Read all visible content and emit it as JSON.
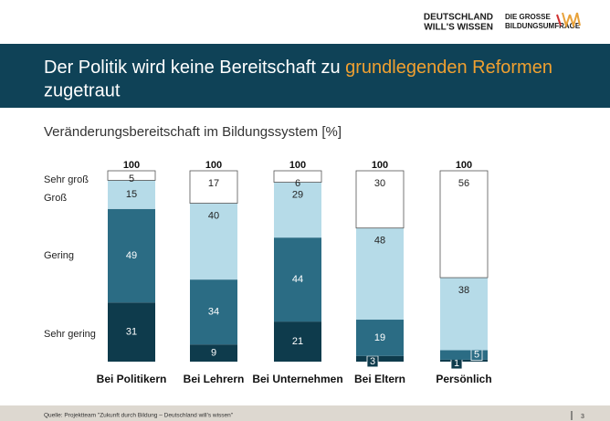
{
  "logos": {
    "left": [
      "DEUTSCHLAND",
      "WILL'S WISSEN"
    ],
    "right": [
      "DIE GROSSE",
      "BILDUNGSUMFRAGE"
    ]
  },
  "banner": {
    "title_start": "Der Politik wird keine Bereitschaft zu ",
    "title_highlight": "grundlegenden Reformen",
    "title_end": "zugetraut"
  },
  "footer": {
    "source": "Quelle: Projektteam \"Zukunft durch Bildung – Deutschland will's wissen\"",
    "page": "3"
  },
  "chart_data": {
    "type": "stacked_bar",
    "title": "Veränderungsbereitschaft im Bildungssystem [%]",
    "categories": [
      "Bei Politikern",
      "Bei Lehrern",
      "Bei Unternehmen",
      "Bei Eltern",
      "Persönlich"
    ],
    "series": [
      {
        "name": "Sehr gering",
        "color": "#0e3b4c",
        "values": [
          31,
          9,
          21,
          3,
          1
        ]
      },
      {
        "name": "Gering",
        "color": "#2b6c84",
        "values": [
          49,
          34,
          44,
          19,
          5
        ]
      },
      {
        "name": "Groß",
        "color": "#b6dbe8",
        "values": [
          15,
          40,
          29,
          48,
          38
        ]
      },
      {
        "name": "Sehr groß",
        "color": "#ffffff",
        "values": [
          5,
          17,
          6,
          30,
          56
        ]
      }
    ],
    "total_labels": [
      100,
      100,
      100,
      100,
      100
    ],
    "ylim": [
      0,
      100
    ]
  }
}
